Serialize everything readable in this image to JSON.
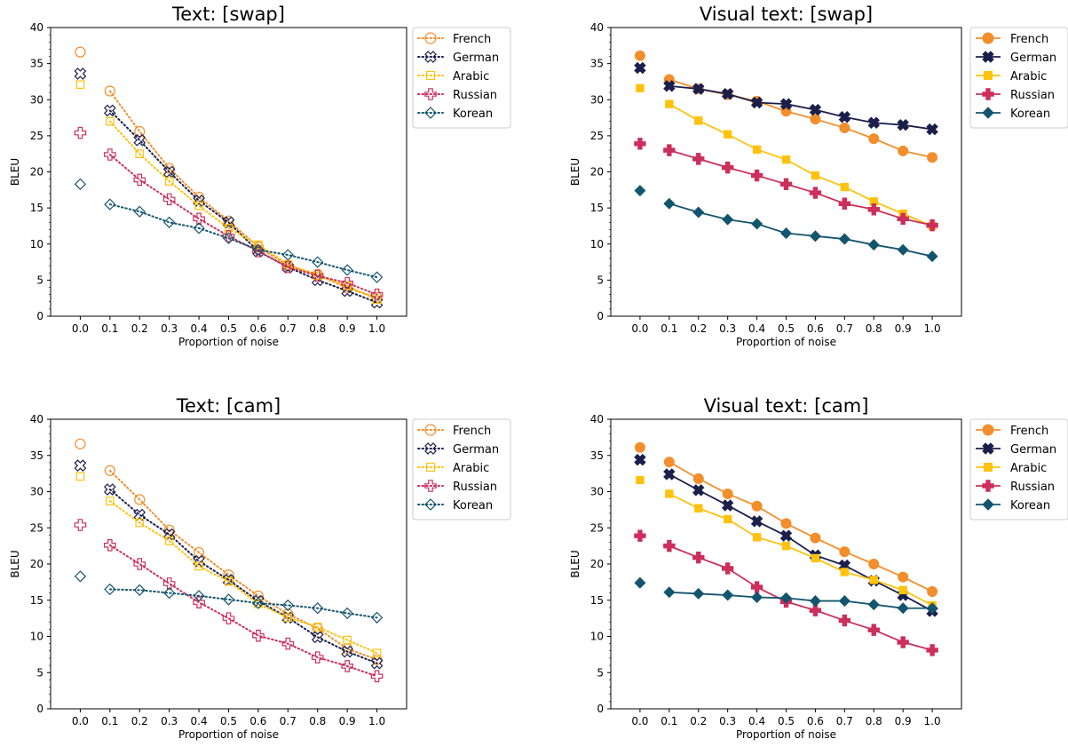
{
  "chart_data": [
    {
      "type": "line",
      "title": "Text: [swap]",
      "xlabel": "Proportion of noise",
      "ylabel": "BLEU",
      "linestyle": "dotted",
      "markerfill": "hollow",
      "ylim": [
        0,
        40
      ],
      "xlim": [
        -0.1,
        1.1
      ],
      "legend": "outside-right",
      "x": [
        0.0,
        0.1,
        0.2,
        0.3,
        0.4,
        0.5,
        0.6,
        0.7,
        0.8,
        0.9,
        1.0
      ],
      "x_tick_labels": [
        "0.0",
        "0.1",
        "0.2",
        "0.3",
        "0.4",
        "0.5",
        "0.6",
        "0.7",
        "0.8",
        "0.9",
        "1.0"
      ],
      "y_ticks": [
        0,
        5,
        10,
        15,
        20,
        25,
        30,
        35,
        40
      ],
      "y_tick_labels": [
        "0",
        "5",
        "10",
        "15",
        "20",
        "25",
        "30",
        "35",
        "40"
      ],
      "series": [
        {
          "name": "French",
          "color": "#f28e2b",
          "marker": "circle",
          "values": [
            36.6,
            31.2,
            25.6,
            20.5,
            16.5,
            13.2,
            9.6,
            7.0,
            5.8,
            3.9,
            2.6
          ]
        },
        {
          "name": "German",
          "color": "#1b1f4a",
          "marker": "x",
          "values": [
            33.6,
            28.5,
            24.4,
            20.0,
            16.0,
            13.0,
            9.0,
            6.8,
            5.0,
            3.5,
            1.9
          ]
        },
        {
          "name": "Arabic",
          "color": "#ffc20e",
          "marker": "square",
          "values": [
            32.1,
            27.0,
            22.5,
            18.7,
            15.3,
            12.2,
            9.9,
            7.2,
            5.6,
            4.2,
            2.3
          ]
        },
        {
          "name": "Russian",
          "color": "#cc2f5b",
          "marker": "plus",
          "values": [
            25.4,
            22.4,
            18.9,
            16.2,
            13.5,
            11.1,
            9.0,
            6.8,
            5.6,
            4.6,
            3.0
          ]
        },
        {
          "name": "Korean",
          "color": "#14556e",
          "marker": "diamond",
          "values": [
            18.3,
            15.5,
            14.5,
            13.0,
            12.2,
            10.8,
            9.2,
            8.5,
            7.5,
            6.4,
            5.4
          ]
        }
      ]
    },
    {
      "type": "line",
      "title": "Visual text: [swap]",
      "xlabel": "Proportion of noise",
      "ylabel": "BLEU",
      "linestyle": "solid",
      "markerfill": "filled",
      "ylim": [
        0,
        40
      ],
      "xlim": [
        -0.1,
        1.1
      ],
      "legend": "outside-right",
      "x": [
        0.0,
        0.1,
        0.2,
        0.3,
        0.4,
        0.5,
        0.6,
        0.7,
        0.8,
        0.9,
        1.0
      ],
      "x_tick_labels": [
        "0.0",
        "0.1",
        "0.2",
        "0.3",
        "0.4",
        "0.5",
        "0.6",
        "0.7",
        "0.8",
        "0.9",
        "1.0"
      ],
      "y_ticks": [
        0,
        5,
        10,
        15,
        20,
        25,
        30,
        35,
        40
      ],
      "y_tick_labels": [
        "0",
        "5",
        "10",
        "15",
        "20",
        "25",
        "30",
        "35",
        "40"
      ],
      "series": [
        {
          "name": "French",
          "color": "#f28e2b",
          "marker": "circle",
          "values": [
            36.1,
            32.8,
            31.5,
            30.7,
            29.8,
            28.4,
            27.3,
            26.1,
            24.6,
            22.9,
            22.0
          ]
        },
        {
          "name": "German",
          "color": "#1b1f4a",
          "marker": "x",
          "values": [
            34.4,
            31.9,
            31.5,
            30.8,
            29.6,
            29.4,
            28.6,
            27.6,
            26.8,
            26.5,
            25.9
          ]
        },
        {
          "name": "Arabic",
          "color": "#ffc20e",
          "marker": "square",
          "values": [
            31.6,
            29.4,
            27.1,
            25.2,
            23.1,
            21.7,
            19.5,
            17.9,
            15.9,
            14.2,
            12.5
          ]
        },
        {
          "name": "Russian",
          "color": "#cc2f5b",
          "marker": "plus",
          "values": [
            23.9,
            23.0,
            21.8,
            20.6,
            19.5,
            18.3,
            17.1,
            15.6,
            14.8,
            13.5,
            12.6
          ]
        },
        {
          "name": "Korean",
          "color": "#14556e",
          "marker": "diamond",
          "values": [
            17.4,
            15.6,
            14.4,
            13.4,
            12.8,
            11.5,
            11.1,
            10.7,
            9.9,
            9.2,
            8.3
          ]
        }
      ]
    },
    {
      "type": "line",
      "title": "Text: [cam]",
      "xlabel": "Proportion of noise",
      "ylabel": "BLEU",
      "linestyle": "dotted",
      "markerfill": "hollow",
      "ylim": [
        0,
        40
      ],
      "xlim": [
        -0.1,
        1.1
      ],
      "legend": "outside-right",
      "x": [
        0.0,
        0.1,
        0.2,
        0.3,
        0.4,
        0.5,
        0.6,
        0.7,
        0.8,
        0.9,
        1.0
      ],
      "x_tick_labels": [
        "0.0",
        "0.1",
        "0.2",
        "0.3",
        "0.4",
        "0.5",
        "0.6",
        "0.7",
        "0.8",
        "0.9",
        "1.0"
      ],
      "y_ticks": [
        0,
        5,
        10,
        15,
        20,
        25,
        30,
        35,
        40
      ],
      "y_tick_labels": [
        "0",
        "5",
        "10",
        "15",
        "20",
        "25",
        "30",
        "35",
        "40"
      ],
      "series": [
        {
          "name": "French",
          "color": "#f28e2b",
          "marker": "circle",
          "values": [
            36.6,
            32.9,
            28.9,
            24.7,
            21.6,
            18.5,
            15.6,
            13.1,
            11.1,
            8.3,
            6.8
          ]
        },
        {
          "name": "German",
          "color": "#1b1f4a",
          "marker": "x",
          "values": [
            33.6,
            30.3,
            26.8,
            24.1,
            20.4,
            17.8,
            14.9,
            12.6,
            9.9,
            7.9,
            6.3
          ]
        },
        {
          "name": "Arabic",
          "color": "#ffc20e",
          "marker": "square",
          "values": [
            32.1,
            28.7,
            25.7,
            23.2,
            19.7,
            17.6,
            14.5,
            12.6,
            11.3,
            9.5,
            7.7
          ]
        },
        {
          "name": "Russian",
          "color": "#cc2f5b",
          "marker": "plus",
          "values": [
            25.4,
            22.6,
            20.0,
            17.3,
            14.7,
            12.5,
            10.1,
            9.0,
            7.1,
            5.9,
            4.5
          ]
        },
        {
          "name": "Korean",
          "color": "#14556e",
          "marker": "diamond",
          "values": [
            18.3,
            16.5,
            16.4,
            16.0,
            15.6,
            15.1,
            14.6,
            14.3,
            13.9,
            13.2,
            12.6
          ]
        }
      ]
    },
    {
      "type": "line",
      "title": "Visual text: [cam]",
      "xlabel": "Proportion of noise",
      "ylabel": "BLEU",
      "linestyle": "solid",
      "markerfill": "filled",
      "ylim": [
        0,
        40
      ],
      "xlim": [
        -0.1,
        1.1
      ],
      "legend": "outside-right",
      "x": [
        0.0,
        0.1,
        0.2,
        0.3,
        0.4,
        0.5,
        0.6,
        0.7,
        0.8,
        0.9,
        1.0
      ],
      "x_tick_labels": [
        "0.0",
        "0.1",
        "0.2",
        "0.3",
        "0.4",
        "0.5",
        "0.6",
        "0.7",
        "0.8",
        "0.9",
        "1.0"
      ],
      "y_ticks": [
        0,
        5,
        10,
        15,
        20,
        25,
        30,
        35,
        40
      ],
      "y_tick_labels": [
        "0",
        "5",
        "10",
        "15",
        "20",
        "25",
        "30",
        "35",
        "40"
      ],
      "series": [
        {
          "name": "French",
          "color": "#f28e2b",
          "marker": "circle",
          "values": [
            36.1,
            34.1,
            31.8,
            29.7,
            28.0,
            25.6,
            23.6,
            21.7,
            20.0,
            18.2,
            16.2
          ]
        },
        {
          "name": "German",
          "color": "#1b1f4a",
          "marker": "x",
          "values": [
            34.4,
            32.4,
            30.2,
            28.1,
            25.9,
            23.9,
            21.2,
            19.8,
            17.7,
            15.7,
            13.5
          ]
        },
        {
          "name": "Arabic",
          "color": "#ffc20e",
          "marker": "square",
          "values": [
            31.6,
            29.7,
            27.7,
            26.2,
            23.7,
            22.5,
            20.8,
            18.9,
            17.8,
            16.4,
            14.3
          ]
        },
        {
          "name": "Russian",
          "color": "#cc2f5b",
          "marker": "plus",
          "values": [
            23.9,
            22.5,
            20.9,
            19.4,
            16.8,
            14.8,
            13.6,
            12.2,
            10.9,
            9.2,
            8.1
          ]
        },
        {
          "name": "Korean",
          "color": "#14556e",
          "marker": "diamond",
          "values": [
            17.4,
            16.1,
            15.9,
            15.7,
            15.4,
            15.3,
            14.9,
            14.9,
            14.4,
            13.9,
            13.9
          ]
        }
      ]
    }
  ]
}
